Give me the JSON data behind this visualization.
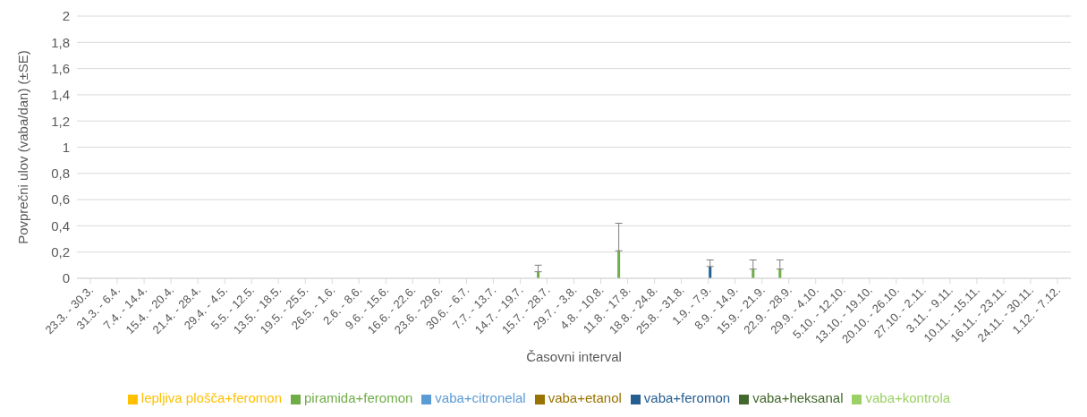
{
  "chart_data": {
    "type": "bar",
    "xlabel": "Časovni interval",
    "ylabel": "Povprečni ulov (vaba/dan) (±SE)",
    "categories": [
      "23.3. - 30.3.",
      "31.3. - 6.4.",
      "7.4. - 14.4.",
      "15.4. - 20.4.",
      "21.4. - 28.4.",
      "29.4. - 4.5.",
      "5.5. - 12.5.",
      "13.5. - 18.5.",
      "19.5. - 25.5.",
      "26.5. - 1.6.",
      "2.6. - 8.6.",
      "9.6. - 15.6.",
      "16.6. - 22.6.",
      "23.6. - 29.6.",
      "30.6. - 6.7.",
      "7.7. - 13.7.",
      "14.7. - 19.7.",
      "15.7. - 28.7.",
      "29.7. - 3.8.",
      "4.8. - 10.8.",
      "11.8. - 17.8.",
      "18.8. - 24.8.",
      "25.8. - 31.8.",
      "1.9. - 7.9.",
      "8.9. - 14.9.",
      "15.9. - 21.9.",
      "22.9. - 28.9.",
      "29.9. - 4.10.",
      "5.10. - 12.10.",
      "13.10. - 19.10.",
      "20.10. - 26.10.",
      "27.10. - 2.11.",
      "3.11. - 9.11.",
      "10.11. - 15.11.",
      "16.11. - 23.11.",
      "24.11. - 30.11.",
      "1.12. - 7.12."
    ],
    "series": [
      {
        "name": "piramida+feromon",
        "color": "#70ad47",
        "values": [
          0,
          0,
          0,
          0,
          0,
          0,
          0,
          0,
          0,
          0,
          0,
          0,
          0,
          0,
          0,
          0,
          0,
          0.05,
          0,
          0,
          0.21,
          0,
          0,
          0,
          0,
          0.07,
          0.07,
          0,
          0,
          0,
          0,
          0,
          0,
          0,
          0,
          0,
          0
        ],
        "errors": [
          null,
          null,
          null,
          null,
          null,
          null,
          null,
          null,
          null,
          null,
          null,
          null,
          null,
          null,
          null,
          null,
          null,
          [
            0.05,
            0.1
          ],
          null,
          null,
          [
            0.21,
            0.42
          ],
          null,
          null,
          null,
          null,
          [
            0.07,
            0.14
          ],
          [
            0.07,
            0.14
          ],
          null,
          null,
          null,
          null,
          null,
          null,
          null,
          null,
          null,
          null
        ]
      },
      {
        "name": "vaba+citronelal",
        "color": "#5b9bd5",
        "values": [
          0,
          0,
          0,
          0,
          0,
          0,
          0,
          0,
          0,
          0,
          0,
          0,
          0,
          0,
          0,
          0,
          0,
          0,
          0,
          0,
          0,
          0,
          0,
          0,
          0,
          0,
          0,
          0,
          0,
          0,
          0,
          0,
          0,
          0,
          0,
          0,
          0
        ]
      },
      {
        "name": "lepljiva plošča+feromon",
        "color": "#ffc000",
        "values": [
          0,
          0,
          0,
          0,
          0,
          0,
          0,
          0,
          0,
          0,
          0,
          0,
          0,
          0,
          0,
          0,
          0,
          0,
          0,
          0,
          0,
          0,
          0,
          0,
          0,
          0,
          0,
          0,
          0,
          0,
          0,
          0,
          0,
          0,
          0,
          0,
          0
        ]
      },
      {
        "name": "vaba+heksanal",
        "color": "#43682b",
        "values": [
          0,
          0,
          0,
          0,
          0,
          0,
          0,
          0,
          0,
          0,
          0,
          0,
          0,
          0,
          0,
          0,
          0,
          0,
          0,
          0,
          0,
          0,
          0,
          0,
          0,
          0,
          0,
          0,
          0,
          0,
          0,
          0,
          0,
          0,
          0,
          0,
          0
        ]
      },
      {
        "name": "vaba+feromon",
        "color": "#255e91",
        "values": [
          0,
          0,
          0,
          0,
          0,
          0,
          0,
          0,
          0,
          0,
          0,
          0,
          0,
          0,
          0,
          0,
          0,
          0,
          0,
          0,
          0,
          0,
          0,
          0.09,
          0,
          0,
          0,
          0,
          0,
          0,
          0,
          0,
          0,
          0,
          0,
          0,
          0
        ],
        "errors": [
          null,
          null,
          null,
          null,
          null,
          null,
          null,
          null,
          null,
          null,
          null,
          null,
          null,
          null,
          null,
          null,
          null,
          null,
          null,
          null,
          null,
          null,
          null,
          [
            0.09,
            0.14
          ],
          null,
          null,
          null,
          null,
          null,
          null,
          null,
          null,
          null,
          null,
          null,
          null,
          null
        ]
      },
      {
        "name": "vaba+etanol",
        "color": "#997300",
        "values": [
          0,
          0,
          0,
          0,
          0,
          0,
          0,
          0,
          0,
          0,
          0,
          0,
          0,
          0,
          0,
          0,
          0,
          0,
          0,
          0,
          0,
          0,
          0,
          0,
          0,
          0,
          0,
          0,
          0,
          0,
          0,
          0,
          0,
          0,
          0,
          0,
          0
        ]
      },
      {
        "name": "vaba+kontrola",
        "color": "#9bd064",
        "values": [
          0,
          0,
          0,
          0,
          0,
          0,
          0,
          0,
          0,
          0,
          0,
          0,
          0,
          0,
          0,
          0,
          0,
          0,
          0,
          0,
          0,
          0,
          0,
          0,
          0,
          0,
          0,
          0,
          0,
          0,
          0,
          0,
          0,
          0,
          0,
          0,
          0
        ]
      }
    ],
    "ylim": [
      0,
      2
    ],
    "yticks": [
      0,
      {
        "value": 0.2,
        "label": "0,2"
      },
      {
        "value": 0.4,
        "label": "0,4"
      },
      {
        "value": 0.6,
        "label": "0,6"
      },
      {
        "value": 0.8,
        "label": "0,8"
      },
      1,
      {
        "value": 1.2,
        "label": "1,2"
      },
      {
        "value": 1.4,
        "label": "1,4"
      },
      {
        "value": 1.6,
        "label": "1,6"
      },
      {
        "value": 1.8,
        "label": "1,8"
      },
      2
    ],
    "grid": "y",
    "legend": "bottom"
  }
}
